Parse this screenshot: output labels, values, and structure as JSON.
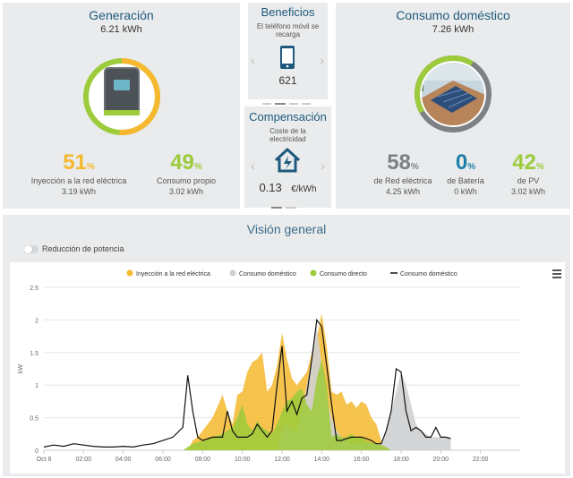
{
  "generation": {
    "title": "Generación",
    "value": "6.21 kWh",
    "stats": [
      {
        "pct": "51",
        "unit": "%",
        "label": "Inyección a la red eléctrica",
        "kwh": "3.19 kWh",
        "color": "#f5b82e"
      },
      {
        "pct": "49",
        "unit": "%",
        "label": "Consumo propio",
        "kwh": "3.02 kWh",
        "color": "#9ccb3b"
      }
    ]
  },
  "benefits": {
    "title": "Beneficios",
    "caption": "El teléfono móvil se recarga",
    "value": "621"
  },
  "compensation": {
    "title": "Compensación",
    "caption": "Coste de la electricidad",
    "value": "0.13",
    "unit": "€/kWh"
  },
  "consumption": {
    "title": "Consumo doméstico",
    "value": "7.26 kWh",
    "stats": [
      {
        "pct": "58",
        "unit": "%",
        "label": "de Red eléctrica",
        "kwh": "4.25 kWh",
        "color": "#7d8185"
      },
      {
        "pct": "0",
        "unit": "%",
        "label": "de Batería",
        "kwh": "0 kWh",
        "color": "#1e7fa8"
      },
      {
        "pct": "42",
        "unit": "%",
        "label": "de PV",
        "kwh": "3.02 kWh",
        "color": "#9ccb3b"
      }
    ]
  },
  "overview": {
    "title": "Visión general",
    "toggle_label": "Reducción de potencia",
    "menu_icon": "hamburger-icon"
  },
  "chart_data": {
    "type": "area",
    "ylabel": "kW",
    "ylim": [
      0,
      2.5
    ],
    "yticks": [
      "0",
      "0.5",
      "1",
      "1.5",
      "2",
      "2.5"
    ],
    "xlim": [
      0,
      24
    ],
    "xticks": [
      "Oct 6",
      "02:00",
      "04:00",
      "06:00",
      "08:00",
      "10:00",
      "12:00",
      "14:00",
      "16:00",
      "18:00",
      "20:00",
      "22:00"
    ],
    "legend_position": "top-center",
    "x": [
      0,
      0.5,
      1,
      1.5,
      2,
      2.5,
      3,
      3.5,
      4,
      4.5,
      5,
      5.5,
      6,
      6.5,
      7,
      7.25,
      7.5,
      7.75,
      8,
      8.5,
      9,
      9.25,
      9.5,
      9.75,
      10,
      10.25,
      10.5,
      10.75,
      11,
      11.25,
      11.5,
      11.75,
      12,
      12.25,
      12.5,
      12.75,
      13,
      13.25,
      13.5,
      13.75,
      14,
      14.25,
      14.5,
      14.75,
      15,
      15.25,
      15.5,
      15.75,
      16,
      16.25,
      16.5,
      16.75,
      17,
      17.25,
      17.5,
      17.75,
      18,
      18.25,
      18.5,
      18.75,
      19,
      19.25,
      19.5,
      19.75,
      20,
      20.25,
      20.5
    ],
    "series": [
      {
        "name": "Inyección a la red eléctrica",
        "color": "#f5b82e",
        "values": [
          0,
          0,
          0,
          0,
          0,
          0,
          0,
          0,
          0,
          0,
          0,
          0,
          0,
          0,
          0,
          0,
          0.15,
          0.2,
          0.3,
          0.5,
          0.85,
          0.6,
          0.4,
          0.85,
          0.9,
          1.2,
          1.35,
          1.4,
          1.5,
          0.9,
          1.0,
          1.3,
          1.8,
          1.4,
          1.1,
          1.0,
          1.1,
          1.2,
          1.5,
          1.7,
          2.1,
          1.6,
          0.9,
          0.85,
          0.9,
          0.7,
          0.75,
          0.65,
          0.75,
          0.7,
          0.5,
          0.4,
          0.15,
          0,
          0,
          0,
          0,
          0,
          0,
          0,
          0,
          0,
          0,
          0,
          0,
          0,
          0
        ]
      },
      {
        "name": "Consumo doméstico",
        "color": "#cfd0d1",
        "values": [
          0,
          0,
          0,
          0,
          0,
          0,
          0,
          0,
          0,
          0,
          0,
          0,
          0,
          0,
          0,
          0,
          0,
          0,
          0,
          0,
          0,
          0,
          0,
          0,
          0,
          0,
          0,
          0,
          0,
          0,
          0,
          0,
          0.3,
          0.4,
          0.3,
          0.3,
          0.6,
          1.0,
          1.4,
          1.9,
          1.3,
          0.8,
          0.5,
          0.3,
          0.2,
          0.15,
          0.1,
          0.1,
          0.1,
          0.1,
          0.1,
          0.1,
          0.1,
          0.3,
          0.6,
          0.9,
          1.2,
          1.0,
          0.7,
          0.4,
          0.3,
          0.25,
          0.2,
          0.2,
          0.2,
          0.2,
          0.2
        ]
      },
      {
        "name": "Consumo directo",
        "color": "#9ccb3b",
        "values": [
          0,
          0,
          0,
          0,
          0,
          0,
          0,
          0,
          0,
          0,
          0,
          0,
          0,
          0,
          0,
          0.05,
          0.1,
          0.12,
          0.15,
          0.2,
          0.25,
          0.3,
          0.35,
          0.5,
          0.7,
          0.4,
          0.3,
          0.45,
          0.35,
          0.3,
          0.25,
          0.4,
          0.6,
          0.75,
          0.8,
          0.9,
          0.95,
          0.7,
          0.6,
          1.1,
          1.4,
          1.0,
          0.2,
          0.25,
          0.2,
          0.2,
          0.25,
          0.2,
          0.2,
          0.15,
          0.12,
          0.1,
          0.08,
          0.05,
          0,
          0,
          0,
          0,
          0,
          0,
          0,
          0,
          0,
          0,
          0,
          0,
          0
        ]
      },
      {
        "name": "Consumo doméstico",
        "color": "#111111",
        "values": [
          0.05,
          0.08,
          0.06,
          0.1,
          0.08,
          0.06,
          0.05,
          0.05,
          0.06,
          0.05,
          0.08,
          0.1,
          0.15,
          0.2,
          0.35,
          1.15,
          0.6,
          0.2,
          0.15,
          0.2,
          0.2,
          0.6,
          0.3,
          0.2,
          0.2,
          0.2,
          0.25,
          0.4,
          0.3,
          0.2,
          0.3,
          1.0,
          1.6,
          0.6,
          0.75,
          0.55,
          0.8,
          0.85,
          1.4,
          2.0,
          1.9,
          1.3,
          0.7,
          0.15,
          0.15,
          0.18,
          0.2,
          0.2,
          0.2,
          0.18,
          0.15,
          0.1,
          0.1,
          0.3,
          0.6,
          1.25,
          1.2,
          0.6,
          0.3,
          0.35,
          0.3,
          0.2,
          0.2,
          0.35,
          0.2,
          0.2,
          0.18
        ]
      }
    ]
  }
}
